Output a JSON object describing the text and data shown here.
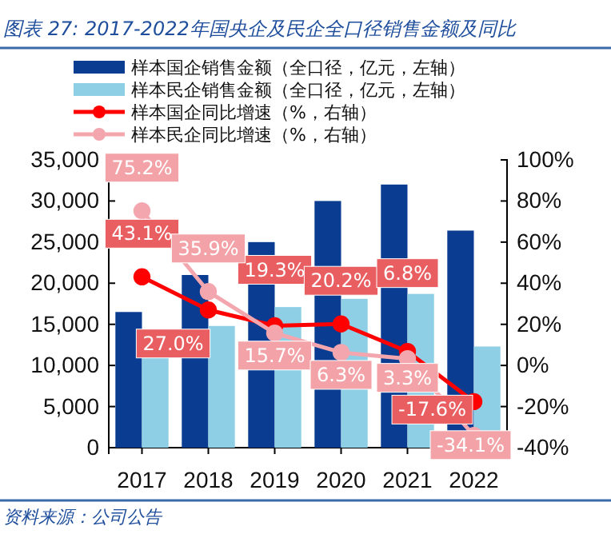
{
  "chart_data": {
    "type": "bar",
    "title": "图表 27: 2017-2022年国央企及民企全口径销售金额及同比",
    "categories": [
      "2017",
      "2018",
      "2019",
      "2020",
      "2021",
      "2022"
    ],
    "series": [
      {
        "name": "样本国企销售金额（全口径，亿元，左轴）",
        "color": "#0a3d91",
        "values": [
          16500,
          21000,
          25000,
          30000,
          32000,
          26400
        ]
      },
      {
        "name": "样本民企销售金额（全口径，亿元，左轴）",
        "color": "#8ecfe6",
        "values": [
          11000,
          14800,
          17100,
          18100,
          18700,
          12300
        ]
      },
      {
        "name": "样本国企同比增速（%，右轴）",
        "type": "line",
        "axis": "y2",
        "color": "#ff0000",
        "values": [
          43.1,
          27.0,
          19.3,
          20.2,
          6.8,
          -17.6
        ],
        "value_labels": [
          "43.1%",
          "27.0%",
          "19.3%",
          "20.2%",
          "6.8%",
          "-17.6%"
        ]
      },
      {
        "name": "样本民企同比增速（%，右轴）",
        "type": "line",
        "axis": "y2",
        "color": "#f4a6ae",
        "values": [
          75.2,
          35.9,
          15.7,
          6.3,
          3.3,
          -34.1
        ],
        "value_labels": [
          "75.2%",
          "35.9%",
          "15.7%",
          "6.3%",
          "3.3%",
          "-34.1%"
        ]
      }
    ],
    "ylim": [
      0,
      35000
    ],
    "yticks": [
      {
        "value": 0,
        "label": "0"
      },
      {
        "value": 5000,
        "label": "5,000"
      },
      {
        "value": 10000,
        "label": "10,000"
      },
      {
        "value": 15000,
        "label": "15,000"
      },
      {
        "value": 20000,
        "label": "20,000"
      },
      {
        "value": 25000,
        "label": "25,000"
      },
      {
        "value": 30000,
        "label": "30,000"
      },
      {
        "value": 35000,
        "label": "35,000"
      }
    ],
    "y2lim": [
      -40,
      100
    ],
    "y2ticks": [
      {
        "value": -40,
        "label": "-40%"
      },
      {
        "value": -20,
        "label": "-20%"
      },
      {
        "value": 0,
        "label": "0%"
      },
      {
        "value": 20,
        "label": "20%"
      },
      {
        "value": 40,
        "label": "40%"
      },
      {
        "value": 60,
        "label": "60%"
      },
      {
        "value": 80,
        "label": "80%"
      },
      {
        "value": 100,
        "label": "100%"
      }
    ],
    "marker": "circle",
    "legend": "top",
    "grid": false,
    "annotations": [
      "资料来源：公司公告"
    ]
  }
}
